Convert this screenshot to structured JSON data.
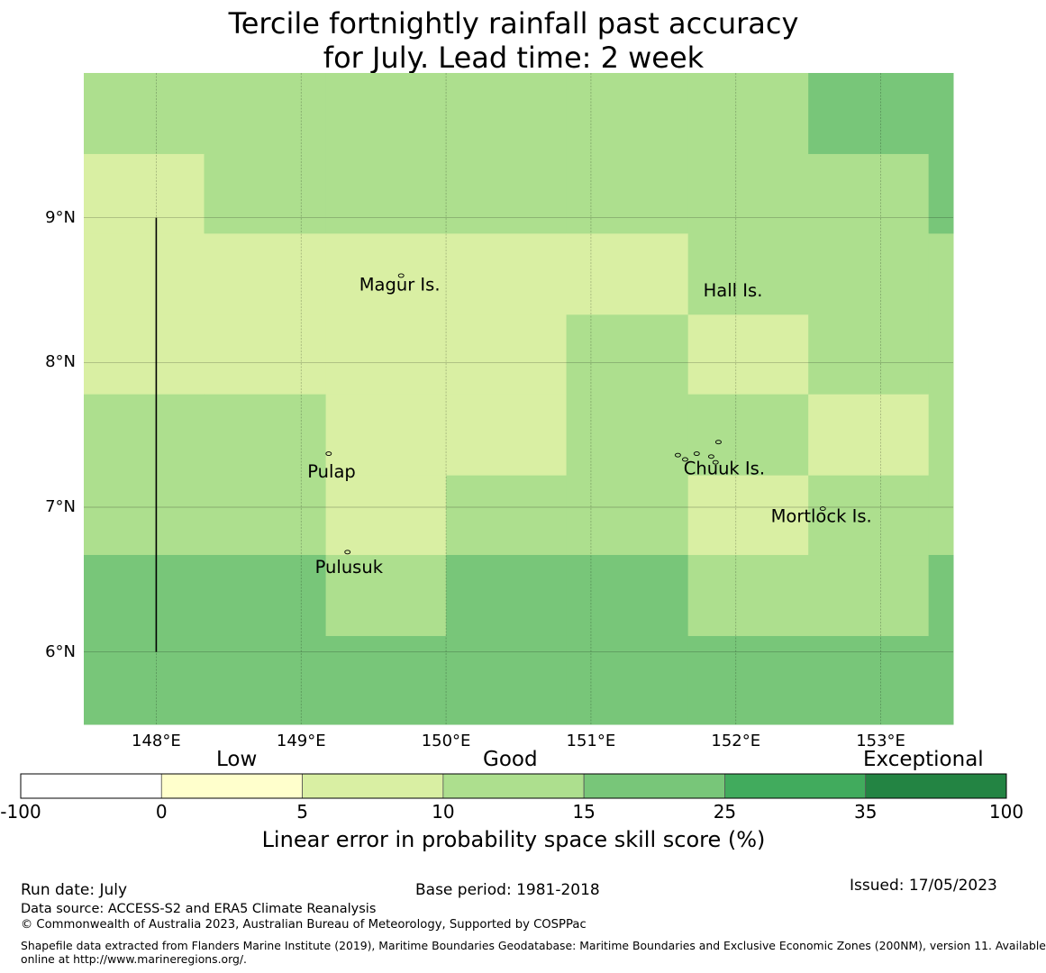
{
  "title": {
    "line1": "Tercile fortnightly rainfall past accuracy",
    "line2": "for July. Lead time: 2 week"
  },
  "map": {
    "lon_range": [
      147.5,
      153.5
    ],
    "lat_range": [
      5.5,
      10.0
    ],
    "lon_ticks": [
      {
        "value": 148,
        "label": "148°E"
      },
      {
        "value": 149,
        "label": "149°E"
      },
      {
        "value": 150,
        "label": "150°E"
      },
      {
        "value": 151,
        "label": "151°E"
      },
      {
        "value": 152,
        "label": "152°E"
      },
      {
        "value": 153,
        "label": "153°E"
      }
    ],
    "lat_ticks": [
      {
        "value": 9,
        "label": "9°N"
      },
      {
        "value": 8,
        "label": "8°N"
      },
      {
        "value": 7,
        "label": "7°N"
      },
      {
        "value": 6,
        "label": "6°N"
      }
    ],
    "grid_lines": true,
    "cell_lons": [
      147.5,
      148.33,
      149.17,
      150.0,
      150.83,
      151.67,
      152.5,
      153.33,
      153.5
    ],
    "cell_lats": [
      10.0,
      9.44,
      8.89,
      8.33,
      7.78,
      7.22,
      6.67,
      6.11,
      5.5
    ],
    "skill_colors": {
      "1": "#d9efa3",
      "2": "#addf8e",
      "3": "#78c679"
    },
    "skill_classes": [
      [
        2,
        2,
        2,
        2,
        2,
        2,
        3,
        3
      ],
      [
        1,
        2,
        2,
        2,
        2,
        2,
        2,
        3
      ],
      [
        1,
        1,
        1,
        1,
        1,
        2,
        2,
        2
      ],
      [
        1,
        1,
        1,
        1,
        2,
        1,
        2,
        2
      ],
      [
        2,
        2,
        1,
        1,
        2,
        2,
        1,
        2
      ],
      [
        2,
        2,
        1,
        2,
        2,
        1,
        2,
        2
      ],
      [
        3,
        3,
        2,
        3,
        3,
        2,
        2,
        3
      ],
      [
        3,
        3,
        3,
        3,
        3,
        3,
        3,
        3
      ]
    ],
    "boundary_line": {
      "lon": 148.0,
      "lat_from": 6.0,
      "lat_to": 9.0
    },
    "place_labels": [
      {
        "name": "Magur Is.",
        "lon": 149.68,
        "lat": 8.54
      },
      {
        "name": "Hall Is.",
        "lon": 151.98,
        "lat": 8.5
      },
      {
        "name": "Pulap",
        "lon": 149.21,
        "lat": 7.25
      },
      {
        "name": "Chuuk Is.",
        "lon": 151.92,
        "lat": 7.27
      },
      {
        "name": "Mortlock Is.",
        "lon": 152.59,
        "lat": 6.94
      },
      {
        "name": "Pulusuk",
        "lon": 149.33,
        "lat": 6.59
      }
    ],
    "islands": [
      {
        "lon": 149.69,
        "lat": 8.6
      },
      {
        "lon": 149.19,
        "lat": 7.37
      },
      {
        "lon": 149.32,
        "lat": 6.69
      },
      {
        "lon": 152.6,
        "lat": 6.99
      },
      {
        "lon": 151.6,
        "lat": 7.36
      },
      {
        "lon": 151.65,
        "lat": 7.33
      },
      {
        "lon": 151.73,
        "lat": 7.37
      },
      {
        "lon": 151.83,
        "lat": 7.35
      },
      {
        "lon": 151.86,
        "lat": 7.31
      },
      {
        "lon": 151.88,
        "lat": 7.45
      }
    ]
  },
  "colorbar": {
    "categories": [
      {
        "label": "Low"
      },
      {
        "label": "Good"
      },
      {
        "label": "Exceptional"
      }
    ],
    "segments": [
      {
        "from": "-100",
        "to": "0",
        "color": "#ffffff"
      },
      {
        "from": "0",
        "to": "5",
        "color": "#ffffcc"
      },
      {
        "from": "5",
        "to": "10",
        "color": "#d9efa3"
      },
      {
        "from": "10",
        "to": "15",
        "color": "#addf8e"
      },
      {
        "from": "15",
        "to": "25",
        "color": "#78c679"
      },
      {
        "from": "25",
        "to": "35",
        "color": "#41ab5d"
      },
      {
        "from": "35",
        "to": "100",
        "color": "#238443"
      }
    ],
    "ticks": [
      "-100",
      "0",
      "5",
      "10",
      "15",
      "25",
      "35",
      "100"
    ],
    "title": "Linear error in probability space skill score (%)"
  },
  "footer": {
    "run_date": "Run date: July",
    "base_period": "Base period: 1981-2018",
    "issued": "Issued: 17/05/2023",
    "data_source": "Data source: ACCESS-S2 and ERA5 Climate Reanalysis",
    "copyright": "© Commonwealth of Australia 2023, Australian Bureau of Meteorology, Supported by COSPPac",
    "shapefile_line1": "Shapefile data extracted from Flanders Marine Institute (2019), Maritime Boundaries Geodatabase: Maritime Boundaries and Exclusive Economic Zones (200NM), version 11. Available",
    "shapefile_line2": "online at http://www.marineregions.org/."
  }
}
